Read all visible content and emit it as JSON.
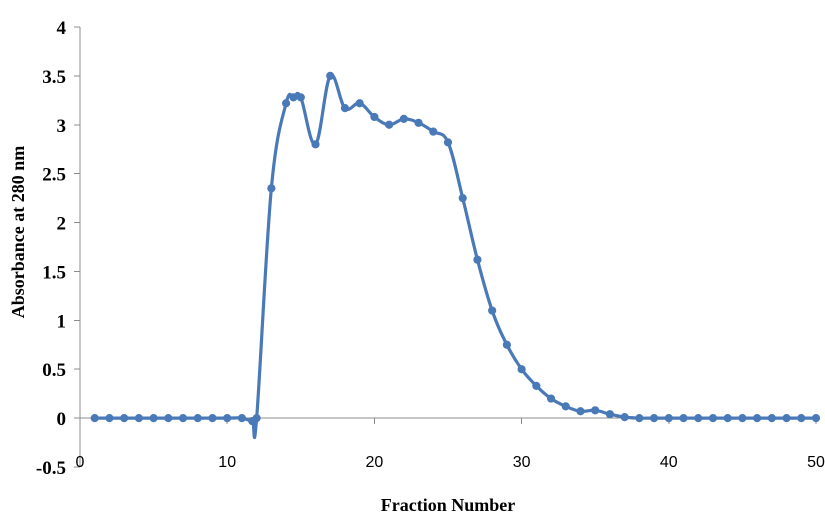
{
  "chart_data": {
    "type": "line",
    "title": "",
    "xlabel": "Fraction Number",
    "ylabel": "Absorbance at 280 nm",
    "xlim": [
      0,
      50
    ],
    "ylim": [
      -0.5,
      4
    ],
    "grid": false,
    "legend": "none",
    "x_ticks": [
      "0",
      "10",
      "20",
      "30",
      "40",
      "50"
    ],
    "y_ticks": [
      "-0.5",
      "0",
      "0.5",
      "1",
      "1.5",
      "2",
      "2.5",
      "3",
      "3.5",
      "4"
    ],
    "series": [
      {
        "color": "#4a79b8",
        "points": [
          [
            1,
            0.0
          ],
          [
            2,
            0.0
          ],
          [
            3,
            0.0
          ],
          [
            4,
            0.0
          ],
          [
            5,
            0.0
          ],
          [
            6,
            0.0
          ],
          [
            7,
            0.0
          ],
          [
            8,
            0.0
          ],
          [
            9,
            0.0
          ],
          [
            10,
            0.0
          ],
          [
            11,
            0.0
          ],
          [
            11.7,
            -0.03
          ],
          [
            12,
            0.0
          ],
          [
            13,
            2.35
          ],
          [
            14,
            3.22
          ],
          [
            14.5,
            3.28
          ],
          [
            15,
            3.28
          ],
          [
            16,
            2.8
          ],
          [
            17,
            3.5
          ],
          [
            18,
            3.17
          ],
          [
            19,
            3.22
          ],
          [
            20,
            3.08
          ],
          [
            21,
            3.0
          ],
          [
            22,
            3.06
          ],
          [
            23,
            3.02
          ],
          [
            24,
            2.93
          ],
          [
            25,
            2.82
          ],
          [
            26,
            2.25
          ],
          [
            27,
            1.62
          ],
          [
            28,
            1.1
          ],
          [
            29,
            0.75
          ],
          [
            30,
            0.5
          ],
          [
            31,
            0.33
          ],
          [
            32,
            0.2
          ],
          [
            33,
            0.12
          ],
          [
            34,
            0.07
          ],
          [
            35,
            0.08
          ],
          [
            36,
            0.04
          ],
          [
            37,
            0.01
          ],
          [
            38,
            0.0
          ],
          [
            39,
            0.0
          ],
          [
            40,
            0.0
          ],
          [
            41,
            0.0
          ],
          [
            42,
            0.0
          ],
          [
            43,
            0.0
          ],
          [
            44,
            0.0
          ],
          [
            45,
            0.0
          ],
          [
            46,
            0.0
          ],
          [
            47,
            0.0
          ],
          [
            48,
            0.0
          ],
          [
            49,
            0.0
          ],
          [
            50,
            0.0
          ]
        ]
      }
    ]
  }
}
